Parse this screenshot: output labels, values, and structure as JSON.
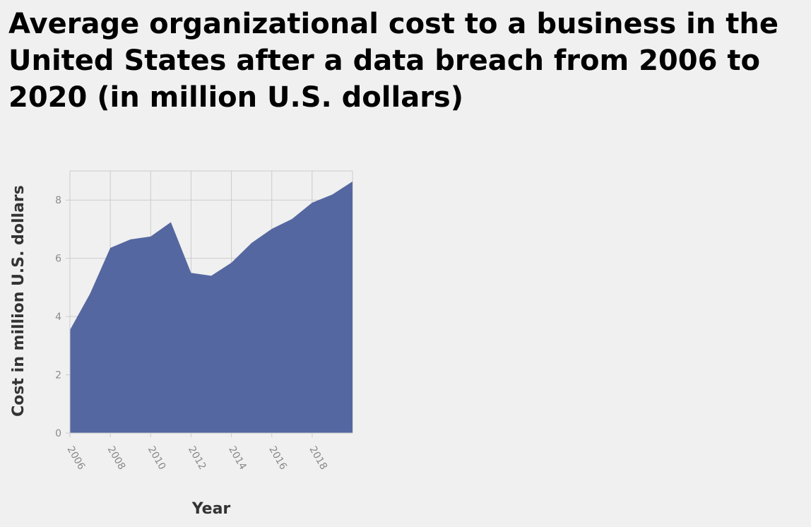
{
  "chart_data": {
    "type": "area",
    "title": "Average organizational cost to a business in the United States after a data breach from 2006 to 2020 (in million U.S. dollars)",
    "xlabel": "Year",
    "ylabel": "Cost in million U.S. dollars",
    "x": [
      2006,
      2007,
      2008,
      2009,
      2010,
      2011,
      2012,
      2013,
      2014,
      2015,
      2016,
      2017,
      2018,
      2019,
      2020
    ],
    "series": [
      {
        "values": [
          3.54,
          4.79,
          6.36,
          6.65,
          6.75,
          7.24,
          5.5,
          5.4,
          5.85,
          6.53,
          7.01,
          7.35,
          7.91,
          8.19,
          8.64
        ]
      }
    ],
    "xlim": [
      2006,
      2020
    ],
    "ylim": [
      0,
      9
    ],
    "x_ticks": [
      "2006",
      "2008",
      "2010",
      "2012",
      "2014",
      "2016",
      "2018"
    ],
    "y_ticks": [
      "0",
      "2",
      "4",
      "6",
      "8"
    ],
    "grid": true,
    "colors": {
      "area": "#5567a0",
      "grid": "#cccccc",
      "background": "#f0f0f0"
    }
  }
}
